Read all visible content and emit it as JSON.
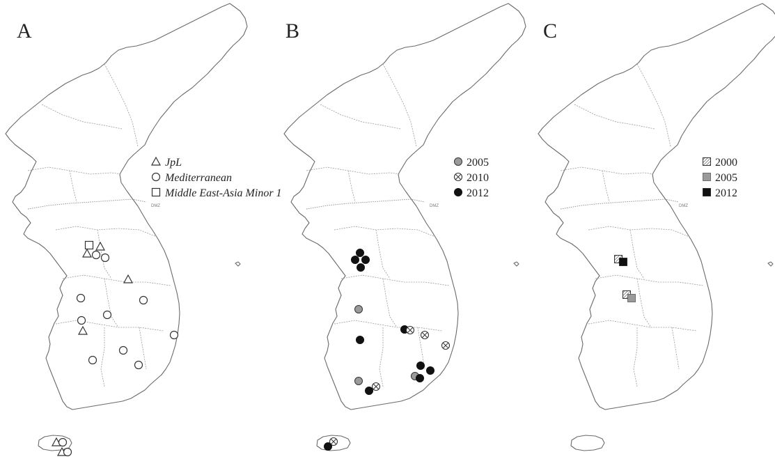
{
  "panels": [
    {
      "letter": "A",
      "dmz_label": "DMZ",
      "legend": [
        {
          "symbol": "triangle",
          "label": "JpL",
          "italic": true
        },
        {
          "symbol": "circle",
          "label": "Mediterranean",
          "italic": true
        },
        {
          "symbol": "square",
          "label": "Middle East-Asia Minor 1",
          "italic": true
        }
      ]
    },
    {
      "letter": "B",
      "dmz_label": "DMZ",
      "legend": [
        {
          "symbol": "circle-gray",
          "label": "2005"
        },
        {
          "symbol": "circle-cross",
          "label": "2010"
        },
        {
          "symbol": "circle-black",
          "label": "2012"
        }
      ]
    },
    {
      "letter": "C",
      "dmz_label": "DMZ",
      "legend": [
        {
          "symbol": "square-hatch",
          "label": "2000"
        },
        {
          "symbol": "square-gray",
          "label": "2005"
        },
        {
          "symbol": "square-black",
          "label": "2012"
        }
      ]
    }
  ],
  "colors": {
    "gray_fill": "#9a9a9a",
    "black_fill": "#111111",
    "outline": "#333333"
  }
}
